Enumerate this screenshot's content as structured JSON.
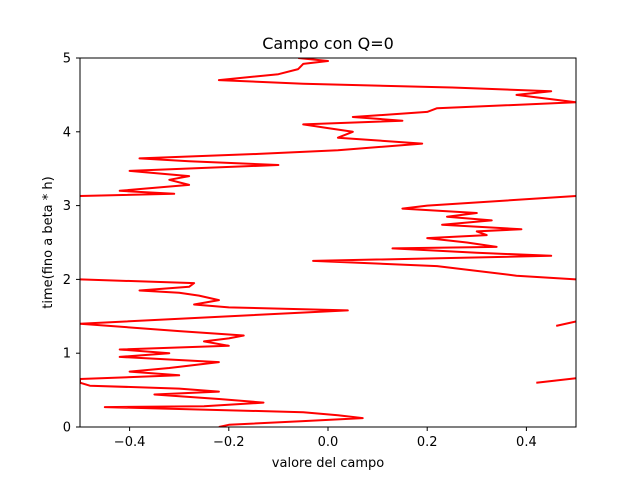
{
  "chart_data": {
    "type": "line",
    "title": "Campo con Q=0",
    "xlabel": "valore del campo",
    "ylabel": "time(fino a beta * h)",
    "xlim": [
      -0.5,
      0.5
    ],
    "ylim": [
      0,
      5
    ],
    "x_ticks": [
      -0.4,
      -0.2,
      0.0,
      0.2,
      0.4
    ],
    "x_tick_labels": [
      "−0.4",
      "−0.2",
      "0.0",
      "0.2",
      "0.4"
    ],
    "y_ticks": [
      0,
      1,
      2,
      3,
      4,
      5
    ],
    "y_tick_labels": [
      "0",
      "1",
      "2",
      "3",
      "4",
      "5"
    ],
    "grid": false,
    "series": [
      {
        "color": "#ff0000",
        "points": [
          [
            -0.22,
            0.0
          ],
          [
            -0.2,
            0.03
          ],
          [
            -0.05,
            0.08
          ],
          [
            0.07,
            0.12
          ],
          [
            0.02,
            0.16
          ],
          [
            -0.05,
            0.2
          ],
          [
            -0.45,
            0.27
          ],
          [
            -0.25,
            0.28
          ],
          [
            -0.13,
            0.33
          ],
          [
            -0.22,
            0.38
          ],
          [
            -0.35,
            0.44
          ],
          [
            -0.22,
            0.48
          ],
          [
            -0.3,
            0.52
          ],
          [
            -0.48,
            0.56
          ],
          [
            -0.5,
            0.6
          ],
          [
            -0.5,
            0.65
          ],
          [
            -0.3,
            0.7
          ],
          [
            -0.4,
            0.75
          ],
          [
            -0.32,
            0.8
          ],
          [
            -0.22,
            0.88
          ],
          [
            -0.42,
            0.95
          ],
          [
            -0.32,
            1.0
          ],
          [
            -0.42,
            1.05
          ],
          [
            -0.2,
            1.1
          ],
          [
            -0.25,
            1.16
          ],
          [
            -0.2,
            1.2
          ],
          [
            -0.17,
            1.24
          ],
          [
            -0.3,
            1.3
          ],
          [
            -0.5,
            1.4
          ],
          [
            0.04,
            1.58
          ],
          [
            -0.2,
            1.62
          ],
          [
            -0.27,
            1.66
          ],
          [
            -0.22,
            1.72
          ],
          [
            -0.26,
            1.78
          ],
          [
            -0.3,
            1.82
          ],
          [
            -0.38,
            1.85
          ],
          [
            -0.28,
            1.9
          ],
          [
            -0.27,
            1.95
          ],
          [
            -0.5,
            2.0
          ]
        ]
      },
      {
        "color": "#ff0000",
        "points": [
          [
            0.5,
            2.0
          ],
          [
            0.38,
            2.05
          ],
          [
            0.22,
            2.18
          ],
          [
            -0.03,
            2.25
          ],
          [
            0.45,
            2.32
          ],
          [
            0.3,
            2.36
          ],
          [
            0.13,
            2.42
          ],
          [
            0.34,
            2.44
          ],
          [
            0.28,
            2.5
          ],
          [
            0.2,
            2.56
          ],
          [
            0.32,
            2.6
          ],
          [
            0.3,
            2.65
          ],
          [
            0.39,
            2.68
          ],
          [
            0.23,
            2.74
          ],
          [
            0.33,
            2.8
          ],
          [
            0.24,
            2.85
          ],
          [
            0.3,
            2.9
          ],
          [
            0.15,
            2.96
          ],
          [
            0.2,
            3.0
          ],
          [
            0.5,
            3.13
          ]
        ]
      },
      {
        "color": "#ff0000",
        "points": [
          [
            -0.5,
            3.13
          ],
          [
            -0.31,
            3.16
          ],
          [
            -0.42,
            3.2
          ],
          [
            -0.28,
            3.28
          ],
          [
            -0.32,
            3.35
          ],
          [
            -0.28,
            3.4
          ],
          [
            -0.4,
            3.47
          ],
          [
            -0.1,
            3.55
          ],
          [
            -0.28,
            3.6
          ],
          [
            -0.38,
            3.64
          ],
          [
            -0.14,
            3.7
          ],
          [
            0.02,
            3.75
          ],
          [
            0.19,
            3.84
          ],
          [
            0.02,
            3.92
          ],
          [
            0.05,
            4.0
          ],
          [
            0.0,
            4.05
          ],
          [
            -0.05,
            4.1
          ],
          [
            0.15,
            4.15
          ],
          [
            0.05,
            4.2
          ],
          [
            0.2,
            4.27
          ],
          [
            0.22,
            4.32
          ],
          [
            0.5,
            4.4
          ],
          [
            0.38,
            4.5
          ],
          [
            0.45,
            4.55
          ],
          [
            0.25,
            4.6
          ],
          [
            -0.05,
            4.65
          ],
          [
            -0.22,
            4.7
          ],
          [
            -0.1,
            4.78
          ],
          [
            -0.06,
            4.85
          ],
          [
            -0.05,
            4.92
          ],
          [
            0.0,
            4.96
          ],
          [
            -0.06,
            5.0
          ]
        ]
      },
      {
        "color": "#ff0000",
        "points": [
          [
            0.46,
            1.37
          ],
          [
            0.5,
            1.43
          ]
        ]
      },
      {
        "color": "#ff0000",
        "points": [
          [
            0.42,
            0.6
          ],
          [
            0.5,
            0.66
          ]
        ]
      }
    ]
  }
}
